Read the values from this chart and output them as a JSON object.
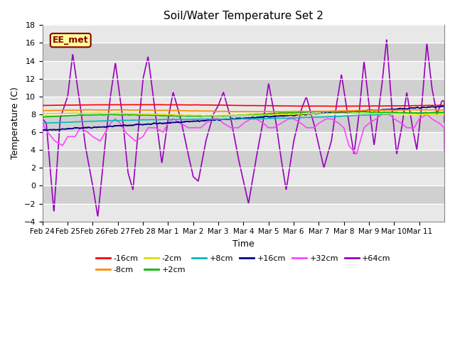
{
  "title": "Soil/Water Temperature Set 2",
  "xlabel": "Time",
  "ylabel": "Temperature (C)",
  "ylim": [
    -4,
    18
  ],
  "yticks": [
    -4,
    -2,
    0,
    2,
    4,
    6,
    8,
    10,
    12,
    14,
    16,
    18
  ],
  "background_color": "#ffffff",
  "plot_bg_color": "#d8d8d8",
  "annotation_text": "EE_met",
  "annotation_bg": "#ffff99",
  "annotation_border": "#880000",
  "legend_entries": [
    {
      "label": "-16cm",
      "color": "#ff0000"
    },
    {
      "label": "-8cm",
      "color": "#ff8800"
    },
    {
      "label": "-2cm",
      "color": "#dddd00"
    },
    {
      "label": "+2cm",
      "color": "#00bb00"
    },
    {
      "label": "+8cm",
      "color": "#00bbbb"
    },
    {
      "label": "+16cm",
      "color": "#000088"
    },
    {
      "label": "+32cm",
      "color": "#ff44ff"
    },
    {
      "label": "+64cm",
      "color": "#9900bb"
    }
  ],
  "series_colors": {
    "-16cm": "#ff0000",
    "-8cm": "#ff8800",
    "-2cm": "#dddd00",
    "+2cm": "#00bb00",
    "+8cm": "#00bbbb",
    "+16cm": "#000088",
    "+32cm": "#ff44ff",
    "+64cm": "#9900bb"
  },
  "num_days": 16,
  "x_tick_labels": [
    "Feb 24",
    "Feb 25",
    "Feb 26",
    "Feb 27",
    "Feb 28",
    "Mar 1",
    "Mar 2",
    "Mar 3",
    "Mar 4",
    "Mar 5",
    "Mar 6",
    "Mar 7",
    "Mar 8",
    "Mar 9",
    "Mar 10",
    "Mar 11"
  ],
  "grid_color": "#bbbbbb",
  "line_width": 1.2
}
